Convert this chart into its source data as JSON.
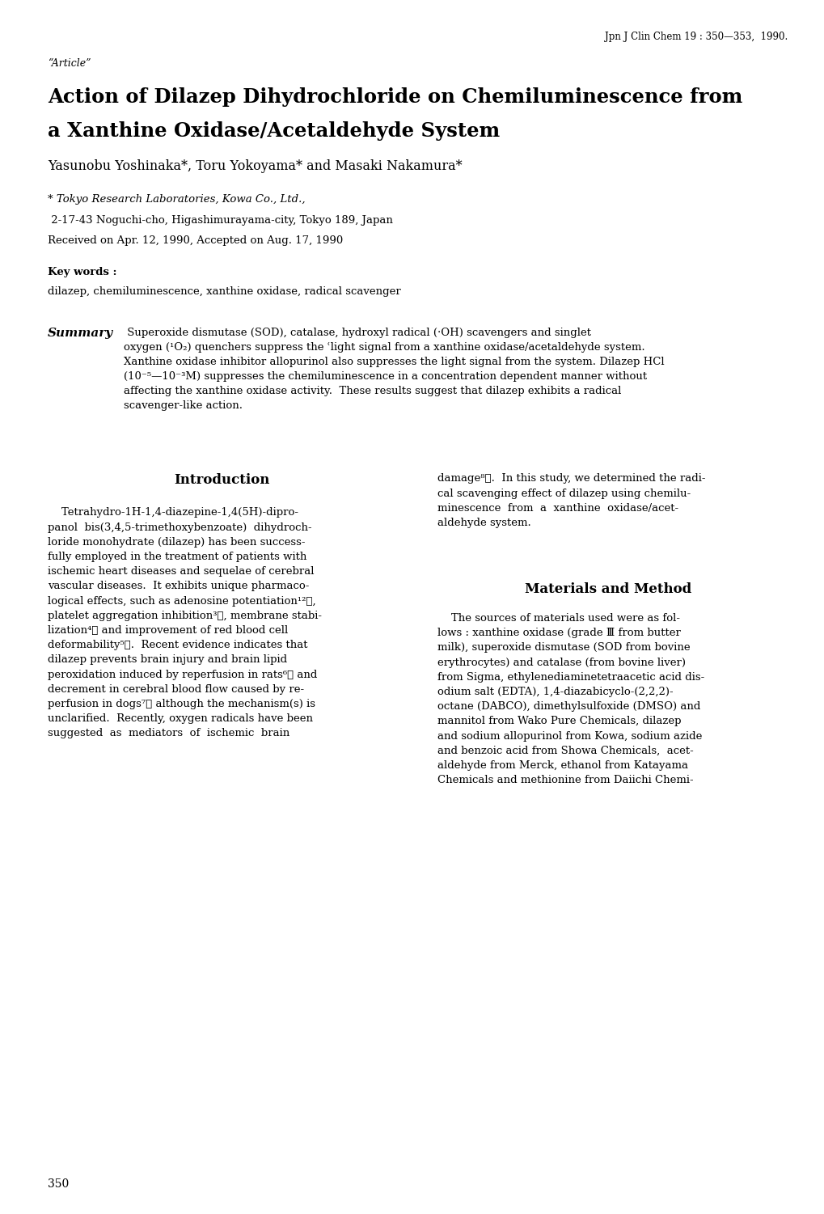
{
  "journal_ref": "Jpn J Clin Chem 19 : 350—353,  1990.",
  "article_label": "“Article”",
  "title_line1": "Action of Dilazep Dihydrochloride on Chemiluminescence from",
  "title_line2": "a Xanthine Oxidase/Acetaldehyde System",
  "authors": "Yasunobu Yoshinaka*, Toru Yokoyama* and Masaki Nakamura*",
  "affiliation_italic": "* Tokyo Research Laboratories, Kowa Co., Ltd.,",
  "affiliation_address": " 2-17-43 Noguchi-cho, Higashimurayama-city, Tokyo 189, Japan",
  "received": "Received on Apr. 12, 1990, Accepted on Aug. 17, 1990",
  "keywords_label": "Key words :",
  "keywords": "dilazep, chemiluminescence, xanthine oxidase, radical scavenger",
  "summary_label": "Summary",
  "summary_line1": " Superoxide dismutase (SOD), catalase, hydroxyl radical (·OH) scavengers and singlet",
  "summary_line2": "oxygen (¹O₂) quenchers suppress the ʿlight signal from a xanthine oxidase/acetaldehyde system.",
  "summary_line3": "Xanthine oxidase inhibitor allopurinol also suppresses the light signal from the system. Dilazep HCl",
  "summary_line4": "(10⁻⁵—10⁻³M) suppresses the chemiluminescence in a concentration dependent manner without",
  "summary_line5": "affecting the xanthine oxidase activity.  These results suggest that dilazep exhibits a radical",
  "summary_line6": "scavenger-like action.",
  "intro_heading": "Introduction",
  "intro_left_lines": [
    "    Tetrahydro-1H-1,4-diazepine-1,4(5H)-dipro-",
    "panol  bis(3,4,5-trimethoxybenzoate)  dihydroch-",
    "loride monohydrate (dilazep) has been success-",
    "fully employed in the treatment of patients with",
    "ischemic heart diseases and sequelae of cerebral",
    "vascular diseases.  It exhibits unique pharmaco-",
    "logical effects, such as adenosine potentiation¹²⧠,",
    "platelet aggregation inhibition³⧠, membrane stabi-",
    "lization⁴⧠ and improvement of red blood cell",
    "deformability⁵⧠.  Recent evidence indicates that",
    "dilazep prevents brain injury and brain lipid",
    "peroxidation induced by reperfusion in rats⁶⧠ and",
    "decrement in cerebral blood flow caused by re-",
    "perfusion in dogs⁷⧠ although the mechanism(s) is",
    "unclarified.  Recently, oxygen radicals have been",
    "suggested  as  mediators  of  ischemic  brain"
  ],
  "right_top_lines": [
    "damage⁸⧠.  In this study, we determined the radi-",
    "cal scavenging effect of dilazep using chemilu-",
    "minescence  from  a  xanthine  oxidase/acet-",
    "aldehyde system."
  ],
  "materials_heading": "Materials and Method",
  "mat_lines": [
    "    The sources of materials used were as fol-",
    "lows : xanthine oxidase (grade Ⅲ from butter",
    "milk), superoxide dismutase (SOD from bovine",
    "erythrocytes) and catalase (from bovine liver)",
    "from Sigma, ethylenediaminetetraacetic acid dis-",
    "odium salt (EDTA), 1,4-diazabicyclo-(2,2,2)-",
    "octane (DABCO), dimethylsulfoxide (DMSO) and",
    "mannitol from Wako Pure Chemicals, dilazep",
    "and sodium allopurinol from Kowa, sodium azide",
    "and benzoic acid from Showa Chemicals,  acet-",
    "aldehyde from Merck, ethanol from Katayama",
    "Chemicals and methionine from Daiichi Chemi-"
  ],
  "page_number": "350",
  "bg_color": "#ffffff",
  "text_color": "#000000"
}
